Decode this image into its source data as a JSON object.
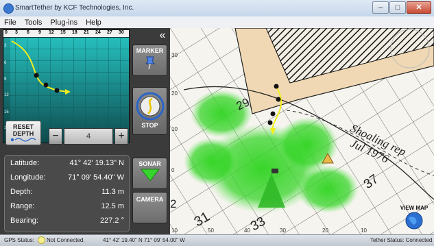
{
  "window": {
    "title": "SmartTether by KCF Technologies, Inc.",
    "min": "–",
    "max": "□",
    "close": "✕"
  },
  "menu": [
    "File",
    "Tools",
    "Plug-ins",
    "Help"
  ],
  "track": {
    "h_ticks": [
      "0",
      "3",
      "6",
      "9",
      "12",
      "15",
      "18",
      "21",
      "24",
      "27",
      "30"
    ],
    "v_ticks": [
      "3",
      "6",
      "9",
      "12",
      "15",
      "18"
    ]
  },
  "buttons": {
    "marker": "MARKER",
    "stop": "STOP",
    "sonar": "SONAR",
    "camera": "CAMERA",
    "reset": "RESET",
    "reset_line2": "DEPTH",
    "collapse": "«",
    "minus": "−",
    "plus": "+"
  },
  "stepper": {
    "value": "4"
  },
  "info": {
    "latitude_label": "Latitude:",
    "latitude": "41° 42' 19.13\" N",
    "longitude_label": "Longitude:",
    "longitude": "71° 09' 54.40\" W",
    "depth_label": "Depth:",
    "depth": "11.3 m",
    "range_label": "Range:",
    "range": "12.5 m",
    "bearing_label": "Bearing:",
    "bearing": "227.2 °"
  },
  "map": {
    "chart_text_1": "Shoaling rep",
    "chart_text_2": "Jul 1976",
    "soundings": [
      "29",
      "37",
      "31",
      "33",
      "2"
    ],
    "axis_left": [
      "30",
      "20",
      "10",
      "0"
    ],
    "axis_bottom": [
      "10",
      "50",
      "40",
      "30",
      "20",
      "10"
    ],
    "view_map": "VIEW MAP"
  },
  "status": {
    "gps_label": "GPS Status:",
    "gps_value": "Not Connected.",
    "coords": "41° 42' 19.40\" N   71° 09' 54.00\" W",
    "tether": "Tether Status: Connected"
  },
  "colors": {
    "accent": "#1fd0cf",
    "track": "#f2ef1c",
    "sonar": "#37d42e",
    "gps_dot": "#f5f08f"
  }
}
